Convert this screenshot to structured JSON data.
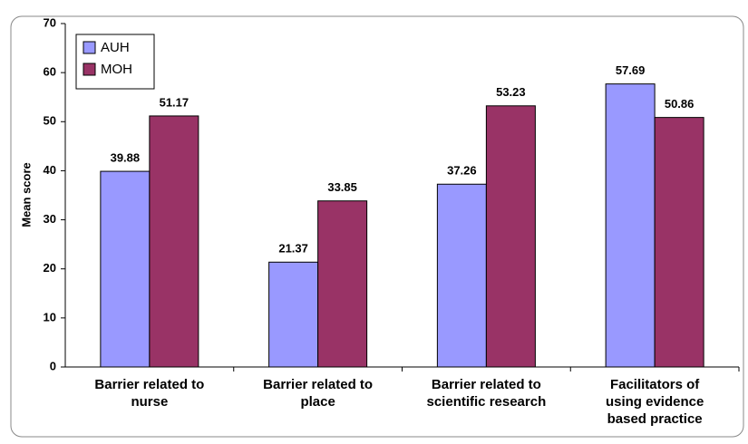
{
  "chart_data": {
    "type": "bar",
    "y_label": "Mean score",
    "categories": [
      "Barrier related to nurse",
      "Barrier related to place",
      "Barrier related to scientific research",
      "Facilitators of using evidence based practice"
    ],
    "series": [
      {
        "name": "AUH",
        "color": "#9999ff",
        "values": [
          39.88,
          21.37,
          37.26,
          57.69
        ]
      },
      {
        "name": "MOH",
        "color": "#993366",
        "values": [
          51.17,
          33.85,
          53.23,
          50.86
        ]
      }
    ],
    "ylim": [
      0,
      70
    ],
    "yticks": [
      0,
      10,
      20,
      30,
      40,
      50,
      60,
      70
    ],
    "legend": "top-left"
  }
}
